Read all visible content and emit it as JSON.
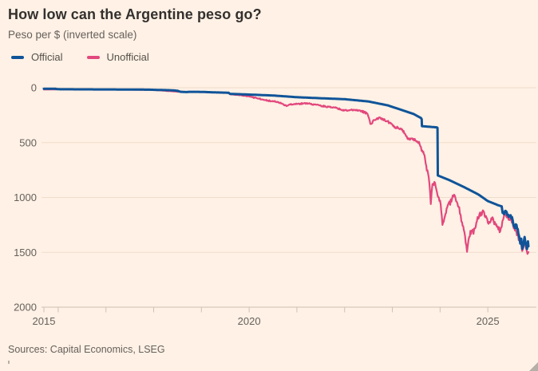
{
  "page": {
    "background": "#FFF1E5"
  },
  "chart_data": {
    "type": "line",
    "title": "How low can the Argentine peso go?",
    "subtitle": "Peso per $ (inverted scale)",
    "source": "Sources: Capital Economics, LSEG",
    "y_axis": {
      "inverted_scale": true,
      "range": [
        0,
        2000
      ],
      "ticks": [
        "0",
        "500",
        "1000",
        "1500",
        "2000"
      ],
      "tick_values": [
        0,
        500,
        1000,
        1500,
        2000
      ],
      "grid": "horizontal-faint"
    },
    "x_axis": {
      "domain": [
        2015.7,
        2026.05
      ],
      "labeled_ticks": [
        {
          "label": "2015",
          "t": 2015.7
        },
        {
          "label": "2020",
          "t": 2020
        },
        {
          "label": "2025",
          "t": 2025
        }
      ],
      "minor_tick_years": [
        2015.7,
        2016,
        2017,
        2018,
        2019,
        2020,
        2021,
        2022,
        2023,
        2024,
        2025
      ]
    },
    "legend_position": "top-left",
    "series": [
      {
        "name": "Official",
        "color": "#0F5499",
        "stroke_width": 3,
        "noise_eras": [
          [
            2015.7,
            0
          ],
          [
            2025.33,
            20
          ]
        ],
        "points": [
          [
            2015.7,
            9.4
          ],
          [
            2015.95,
            9.8
          ],
          [
            2015.98,
            13.3
          ],
          [
            2016.4,
            14.4
          ],
          [
            2016.9,
            15.2
          ],
          [
            2017.4,
            15.9
          ],
          [
            2017.9,
            17.4
          ],
          [
            2018.1,
            19.8
          ],
          [
            2018.35,
            22.5
          ],
          [
            2018.44,
            25.0
          ],
          [
            2018.5,
            28.0
          ],
          [
            2018.56,
            36.5
          ],
          [
            2018.68,
            39.5
          ],
          [
            2018.75,
            36.8
          ],
          [
            2019.0,
            37.6
          ],
          [
            2019.3,
            42.5
          ],
          [
            2019.57,
            45.3
          ],
          [
            2019.6,
            56.0
          ],
          [
            2019.8,
            58.5
          ],
          [
            2020.0,
            62.0
          ],
          [
            2020.5,
            70.5
          ],
          [
            2021.0,
            86.0
          ],
          [
            2021.5,
            95.5
          ],
          [
            2022.0,
            104.0
          ],
          [
            2022.5,
            125.0
          ],
          [
            2022.9,
            160.0
          ],
          [
            2023.2,
            203.0
          ],
          [
            2023.45,
            240.0
          ],
          [
            2023.6,
            276.0
          ],
          [
            2023.615,
            287.0
          ],
          [
            2023.62,
            350.0
          ],
          [
            2023.93,
            361.0
          ],
          [
            2023.945,
            366.0
          ],
          [
            2023.952,
            799.0
          ],
          [
            2024.2,
            843.0
          ],
          [
            2024.5,
            905.0
          ],
          [
            2024.8,
            972.0
          ],
          [
            2025.0,
            1033.0
          ],
          [
            2025.2,
            1068.0
          ],
          [
            2025.29,
            1081.0
          ],
          [
            2025.31,
            1140.0
          ],
          [
            2025.38,
            1125.0
          ],
          [
            2025.45,
            1165.0
          ],
          [
            2025.52,
            1205.0
          ],
          [
            2025.56,
            1270.0
          ],
          [
            2025.6,
            1250.0
          ],
          [
            2025.64,
            1330.0
          ],
          [
            2025.68,
            1420.0
          ],
          [
            2025.7,
            1375.0
          ],
          [
            2025.72,
            1468.0
          ],
          [
            2025.75,
            1415.0
          ],
          [
            2025.77,
            1360.0
          ],
          [
            2025.8,
            1435.0
          ],
          [
            2025.82,
            1470.0
          ],
          [
            2025.84,
            1400.0
          ],
          [
            2025.85,
            1445.0
          ]
        ]
      },
      {
        "name": "Unofficial",
        "color": "#E2487D",
        "stroke_width": 2.2,
        "noise_eras": [
          [
            2015.7,
            0.6
          ],
          [
            2019.6,
            2.5
          ],
          [
            2020.1,
            6
          ],
          [
            2022.3,
            10
          ],
          [
            2023.55,
            22
          ],
          [
            2023.99,
            30
          ],
          [
            2025.33,
            22
          ]
        ],
        "points": [
          [
            2015.7,
            15.8
          ],
          [
            2015.95,
            14.6
          ],
          [
            2016.0,
            13.9
          ],
          [
            2016.5,
            14.9
          ],
          [
            2017.0,
            16.4
          ],
          [
            2017.5,
            17.4
          ],
          [
            2018.0,
            19.9
          ],
          [
            2018.5,
            36.0
          ],
          [
            2018.75,
            37.5
          ],
          [
            2019.0,
            38.5
          ],
          [
            2019.55,
            46.0
          ],
          [
            2019.62,
            60.0
          ],
          [
            2019.8,
            67.0
          ],
          [
            2020.0,
            78.0
          ],
          [
            2020.2,
            98.0
          ],
          [
            2020.4,
            117.0
          ],
          [
            2020.6,
            128.0
          ],
          [
            2020.78,
            167.0
          ],
          [
            2020.85,
            152.0
          ],
          [
            2021.0,
            149.0
          ],
          [
            2021.2,
            142.0
          ],
          [
            2021.4,
            155.0
          ],
          [
            2021.6,
            171.0
          ],
          [
            2021.8,
            181.0
          ],
          [
            2022.0,
            207.0
          ],
          [
            2022.2,
            201.0
          ],
          [
            2022.35,
            211.0
          ],
          [
            2022.48,
            238.0
          ],
          [
            2022.54,
            330.0
          ],
          [
            2022.62,
            296.0
          ],
          [
            2022.75,
            273.0
          ],
          [
            2022.9,
            306.0
          ],
          [
            2023.05,
            356.0
          ],
          [
            2023.2,
            377.0
          ],
          [
            2023.3,
            442.0
          ],
          [
            2023.33,
            469.0
          ],
          [
            2023.42,
            462.0
          ],
          [
            2023.52,
            488.0
          ],
          [
            2023.6,
            540.0
          ],
          [
            2023.66,
            605.0
          ],
          [
            2023.71,
            710.0
          ],
          [
            2023.76,
            810.0
          ],
          [
            2023.79,
            950.0
          ],
          [
            2023.805,
            1060.0
          ],
          [
            2023.84,
            878.0
          ],
          [
            2023.88,
            858.0
          ],
          [
            2023.92,
            925.0
          ],
          [
            2023.96,
            995.0
          ],
          [
            2024.0,
            1028.0
          ],
          [
            2024.05,
            1250.0
          ],
          [
            2024.1,
            1175.0
          ],
          [
            2024.16,
            1072.0
          ],
          [
            2024.25,
            1013.0
          ],
          [
            2024.31,
            986.0
          ],
          [
            2024.4,
            1088.0
          ],
          [
            2024.46,
            1225.0
          ],
          [
            2024.51,
            1315.0
          ],
          [
            2024.55,
            1435.0
          ],
          [
            2024.565,
            1495.0
          ],
          [
            2024.61,
            1360.0
          ],
          [
            2024.66,
            1302.0
          ],
          [
            2024.7,
            1332.0
          ],
          [
            2024.76,
            1228.0
          ],
          [
            2024.81,
            1188.0
          ],
          [
            2024.86,
            1138.0
          ],
          [
            2024.91,
            1126.0
          ],
          [
            2024.96,
            1168.0
          ],
          [
            2025.0,
            1228.0
          ],
          [
            2025.06,
            1218.0
          ],
          [
            2025.11,
            1192.0
          ],
          [
            2025.16,
            1248.0
          ],
          [
            2025.22,
            1292.0
          ],
          [
            2025.26,
            1308.0
          ],
          [
            2025.29,
            1268.0
          ],
          [
            2025.32,
            1202.0
          ],
          [
            2025.36,
            1158.0
          ],
          [
            2025.41,
            1176.0
          ],
          [
            2025.46,
            1206.0
          ],
          [
            2025.52,
            1232.0
          ],
          [
            2025.57,
            1302.0
          ],
          [
            2025.62,
            1342.0
          ],
          [
            2025.66,
            1392.0
          ],
          [
            2025.7,
            1428.0
          ],
          [
            2025.72,
            1488.0
          ],
          [
            2025.75,
            1448.0
          ],
          [
            2025.77,
            1392.0
          ],
          [
            2025.8,
            1462.0
          ],
          [
            2025.83,
            1515.0
          ],
          [
            2025.85,
            1498.0
          ]
        ]
      }
    ],
    "colors": {
      "background": "#FFF1E5",
      "grid": "#EFDCCB",
      "axis": "#CFC0B4",
      "tick_label": "#66605C",
      "official": "#0F5499",
      "unofficial": "#E2487D"
    }
  }
}
